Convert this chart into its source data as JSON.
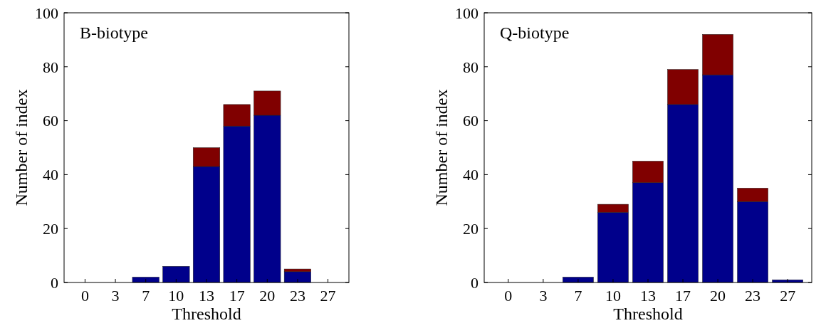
{
  "chart_data": [
    {
      "type": "bar",
      "title": "B-biotype",
      "xlabel": "Threshold",
      "ylabel": "Number of index",
      "categories": [
        "0",
        "3",
        "7",
        "10",
        "13",
        "17",
        "20",
        "23",
        "27"
      ],
      "stacked": true,
      "ylim": [
        0,
        100
      ],
      "yticks": [
        0,
        20,
        40,
        60,
        80,
        100
      ],
      "series": [
        {
          "color": "#00008b",
          "values": [
            0,
            0,
            2,
            6,
            43,
            58,
            62,
            4,
            0
          ]
        },
        {
          "color": "#800000",
          "values": [
            0,
            0,
            0,
            0,
            7,
            8,
            9,
            1,
            0
          ]
        }
      ]
    },
    {
      "type": "bar",
      "title": "Q-biotype",
      "xlabel": "Threshold",
      "ylabel": "Number of index",
      "categories": [
        "0",
        "3",
        "7",
        "10",
        "13",
        "17",
        "20",
        "23",
        "27"
      ],
      "stacked": true,
      "ylim": [
        0,
        100
      ],
      "yticks": [
        0,
        20,
        40,
        60,
        80,
        100
      ],
      "series": [
        {
          "color": "#00008b",
          "values": [
            0,
            0,
            2,
            26,
            37,
            66,
            77,
            30,
            1
          ]
        },
        {
          "color": "#800000",
          "values": [
            0,
            0,
            0,
            3,
            8,
            13,
            15,
            5,
            0
          ]
        }
      ]
    }
  ]
}
